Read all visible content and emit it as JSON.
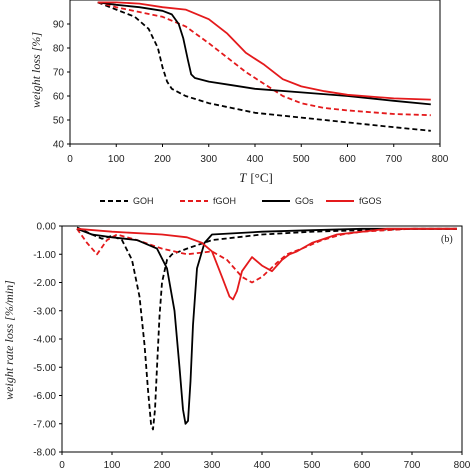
{
  "chart_data": [
    {
      "type": "line",
      "panel": "top",
      "xlabel_var": "T",
      "xlabel_unit": "[°C]",
      "ylabel": "weight loss [%]",
      "xlim": [
        0,
        800
      ],
      "ylim": [
        40,
        100
      ],
      "xticks": [
        0,
        100,
        200,
        300,
        400,
        500,
        600,
        700,
        800
      ],
      "yticks": [
        40,
        50,
        60,
        70,
        80,
        90
      ],
      "legend_position": "bottom",
      "series": [
        {
          "name": "GOH",
          "color": "#000000",
          "dash": "dashed",
          "x": [
            60,
            100,
            140,
            170,
            190,
            200,
            210,
            220,
            250,
            300,
            350,
            400,
            500,
            600,
            700,
            780
          ],
          "y": [
            99,
            96,
            93,
            88,
            80,
            72,
            66,
            63,
            60,
            57,
            55,
            53,
            51,
            49,
            47,
            45.5
          ]
        },
        {
          "name": "fGOH",
          "color": "#e41a1c",
          "dash": "dashed",
          "x": [
            60,
            100,
            150,
            200,
            250,
            300,
            340,
            380,
            420,
            460,
            500,
            550,
            600,
            700,
            780
          ],
          "y": [
            99,
            97,
            95,
            93,
            89,
            82,
            76,
            70,
            65,
            60,
            57,
            55,
            54,
            52.5,
            52
          ]
        },
        {
          "name": "GOs",
          "color": "#000000",
          "dash": "solid",
          "x": [
            60,
            100,
            150,
            200,
            220,
            235,
            245,
            255,
            262,
            270,
            300,
            350,
            400,
            500,
            600,
            700,
            780
          ],
          "y": [
            99,
            98,
            97,
            95.5,
            94,
            90,
            84,
            75,
            69,
            67.5,
            66,
            64.5,
            63,
            61.5,
            60,
            58,
            56.5
          ]
        },
        {
          "name": "fGOS",
          "color": "#e41a1c",
          "dash": "solid",
          "x": [
            60,
            100,
            150,
            200,
            250,
            300,
            340,
            380,
            420,
            460,
            500,
            550,
            600,
            700,
            780
          ],
          "y": [
            99,
            99,
            98.5,
            97,
            96,
            92,
            86,
            78,
            73,
            67,
            64,
            62,
            60.5,
            59,
            58.5
          ]
        }
      ]
    },
    {
      "type": "line",
      "panel": "bottom",
      "panel_tag": "(b)",
      "ylabel": "weight rate loss [%/min]",
      "xlim": [
        0,
        800
      ],
      "ylim": [
        -8,
        0
      ],
      "xticks": [
        0,
        100,
        200,
        300,
        400,
        500,
        600,
        700,
        800
      ],
      "yticks": [
        -8,
        -7,
        -6,
        -5,
        -4,
        -3,
        -2,
        -1,
        0
      ],
      "xtick_labels": [
        "0",
        "100",
        "200",
        "300",
        "400",
        "500",
        "600",
        "700",
        "800"
      ],
      "ytick_labels": [
        "-8.00",
        "-7.00",
        "-6.00",
        "-5.00",
        "-4.00",
        "-3.00",
        "-2.00",
        "-1.00",
        "0.00"
      ],
      "series": [
        {
          "name": "GOH",
          "color": "#000000",
          "dash": "dashed",
          "x": [
            30,
            60,
            80,
            100,
            120,
            140,
            155,
            165,
            172,
            178,
            182,
            186,
            190,
            195,
            200,
            210,
            220,
            250,
            300,
            400,
            500,
            600,
            700,
            790
          ],
          "y": [
            -0.05,
            -0.3,
            -0.45,
            -0.35,
            -0.5,
            -1.2,
            -2.5,
            -4.2,
            -5.8,
            -7.0,
            -7.2,
            -6.5,
            -5.0,
            -3.2,
            -2.0,
            -1.2,
            -1.0,
            -0.8,
            -0.5,
            -0.3,
            -0.2,
            -0.15,
            -0.1,
            -0.1
          ]
        },
        {
          "name": "fGOH",
          "color": "#e41a1c",
          "dash": "dashed",
          "x": [
            30,
            50,
            70,
            90,
            110,
            150,
            200,
            250,
            300,
            330,
            360,
            380,
            400,
            430,
            450,
            480,
            520,
            560,
            600,
            650,
            700,
            790
          ],
          "y": [
            -0.1,
            -0.6,
            -1.0,
            -0.5,
            -0.3,
            -0.5,
            -0.8,
            -1.0,
            -0.9,
            -1.2,
            -1.8,
            -2.0,
            -1.8,
            -1.3,
            -1.0,
            -0.8,
            -0.5,
            -0.3,
            -0.2,
            -0.15,
            -0.1,
            -0.1
          ]
        },
        {
          "name": "GOs",
          "color": "#000000",
          "dash": "solid",
          "x": [
            30,
            60,
            100,
            150,
            190,
            210,
            225,
            235,
            242,
            247,
            252,
            257,
            262,
            270,
            285,
            300,
            400,
            500,
            600,
            700,
            790
          ],
          "y": [
            -0.1,
            -0.3,
            -0.4,
            -0.5,
            -0.8,
            -1.5,
            -3.0,
            -5.0,
            -6.5,
            -7.0,
            -6.9,
            -5.5,
            -3.5,
            -1.5,
            -0.6,
            -0.3,
            -0.2,
            -0.15,
            -0.1,
            -0.1,
            -0.1
          ]
        },
        {
          "name": "fGOS",
          "color": "#e41a1c",
          "dash": "solid",
          "x": [
            30,
            100,
            200,
            250,
            280,
            300,
            320,
            335,
            342,
            350,
            360,
            380,
            400,
            420,
            440,
            455,
            470,
            500,
            550,
            600,
            650,
            700,
            790
          ],
          "y": [
            -0.1,
            -0.2,
            -0.3,
            -0.4,
            -0.6,
            -0.9,
            -1.8,
            -2.5,
            -2.6,
            -2.3,
            -1.6,
            -1.1,
            -1.4,
            -1.6,
            -1.2,
            -1.0,
            -0.9,
            -0.6,
            -0.3,
            -0.2,
            -0.1,
            -0.1,
            -0.1
          ]
        }
      ]
    }
  ]
}
